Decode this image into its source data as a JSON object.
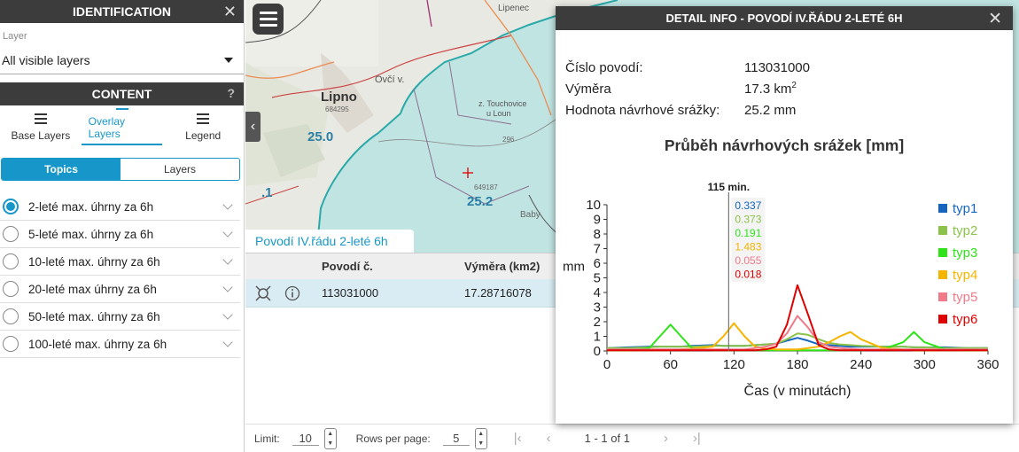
{
  "left": {
    "identification_title": "IDENTIFICATION",
    "layer_label": "Layer",
    "layer_value": "All visible layers",
    "content_title": "CONTENT",
    "help": "?",
    "tabs": [
      {
        "label": "Base Layers",
        "active": false
      },
      {
        "label": "Overlay Layers",
        "active": true
      },
      {
        "label": "Legend",
        "active": false
      }
    ],
    "segment": {
      "topics": "Topics",
      "layers": "Layers"
    },
    "topics": [
      {
        "label": "2-leté max. úhrny za 6h",
        "selected": true
      },
      {
        "label": "5-leté max. úhrny za 6h",
        "selected": false
      },
      {
        "label": "10-leté max. úhrny za 6h",
        "selected": false
      },
      {
        "label": "20-leté max úhrny za 6h",
        "selected": false
      },
      {
        "label": "50-leté max. úhrny za 6h",
        "selected": false
      },
      {
        "label": "100-leté max. úhrny za 6h",
        "selected": false
      }
    ]
  },
  "map": {
    "labels": [
      "Lipno",
      "25.0",
      "25.2",
      ".1",
      "Ovčí v.",
      "z. Touchovice",
      "u Loun",
      "Lipenec",
      "684295",
      "296",
      "Baby",
      "649187"
    ]
  },
  "table": {
    "tab_label": "Povodí IV.řádu 2-leté 6h",
    "headers": {
      "povodi": "Povodí č.",
      "vymera": "Výměra (km2)"
    },
    "rows": [
      {
        "povodi": "113031000",
        "vymera": "17.28716078"
      }
    ],
    "pager": {
      "limit_label": "Limit:",
      "limit": "10",
      "rows_label": "Rows per page:",
      "rows": "5",
      "range": "1 - 1 of 1"
    }
  },
  "dialog": {
    "title": "DETAIL INFO - POVODÍ IV.ŘÁDU 2-LETÉ 6H",
    "fields": [
      {
        "k": "Číslo povodí:",
        "v": "113031000"
      },
      {
        "k": "Výměra",
        "v": "17.3 km"
      },
      {
        "k": "Hodnota návrhové srážky:",
        "v": "25.2 mm"
      }
    ],
    "area_unit_sup": "2",
    "chart_title": "Průběh návrhových srážek [mm]"
  },
  "chart_data": {
    "type": "line",
    "title": "Průběh návrhových srážek [mm]",
    "xlabel": "Čas (v minutách)",
    "ylabel": "mm",
    "xlim": [
      0,
      360
    ],
    "ylim": [
      0,
      10
    ],
    "xticks": [
      0,
      60,
      120,
      180,
      240,
      300,
      360
    ],
    "yticks": [
      0,
      1,
      2,
      3,
      4,
      5,
      6,
      7,
      8,
      9,
      10
    ],
    "cursor": {
      "label": "115 min.",
      "x": 115,
      "values": [
        "0.337",
        "0.373",
        "0.191",
        "1.483",
        "0.055",
        "0.018"
      ]
    },
    "x": [
      0,
      20,
      40,
      50,
      60,
      70,
      80,
      100,
      110,
      120,
      130,
      140,
      150,
      160,
      170,
      180,
      190,
      200,
      210,
      220,
      230,
      240,
      260,
      280,
      290,
      300,
      320,
      340,
      360
    ],
    "series": [
      {
        "name": "typ1",
        "color": "#1565c0",
        "values": [
          0.2,
          0.25,
          0.3,
          0.3,
          0.3,
          0.3,
          0.35,
          0.4,
          0.35,
          0.35,
          0.35,
          0.4,
          0.45,
          0.5,
          0.7,
          0.9,
          0.7,
          0.45,
          0.4,
          0.35,
          0.3,
          0.3,
          0.3,
          0.3,
          0.25,
          0.25,
          0.25,
          0.2,
          0.2
        ]
      },
      {
        "name": "typ2",
        "color": "#8bc34a",
        "values": [
          0.2,
          0.2,
          0.25,
          0.3,
          0.3,
          0.3,
          0.3,
          0.35,
          0.35,
          0.35,
          0.35,
          0.4,
          0.45,
          0.5,
          0.8,
          1.2,
          1.1,
          0.8,
          0.55,
          0.45,
          0.4,
          0.35,
          0.3,
          0.3,
          0.25,
          0.25,
          0.2,
          0.2,
          0.2
        ]
      },
      {
        "name": "typ3",
        "color": "#2fe31a",
        "values": [
          0.05,
          0.05,
          0.2,
          1.0,
          1.8,
          1.0,
          0.2,
          0.05,
          0.05,
          0.05,
          0.05,
          0.05,
          0.05,
          0.05,
          0.05,
          0.05,
          0.05,
          0.05,
          0.05,
          0.05,
          0.05,
          0.05,
          0.1,
          0.6,
          1.3,
          0.6,
          0.1,
          0.05,
          0.05
        ]
      },
      {
        "name": "typ4",
        "color": "#f5b400",
        "values": [
          0.05,
          0.05,
          0.05,
          0.05,
          0.05,
          0.1,
          0.15,
          0.3,
          1.0,
          1.9,
          1.0,
          0.3,
          0.15,
          0.1,
          0.1,
          0.1,
          0.2,
          0.3,
          0.6,
          1.0,
          1.3,
          0.8,
          0.2,
          0.1,
          0.05,
          0.05,
          0.05,
          0.05,
          0.05
        ]
      },
      {
        "name": "typ5",
        "color": "#f07a8a",
        "values": [
          0.1,
          0.1,
          0.1,
          0.1,
          0.1,
          0.1,
          0.1,
          0.1,
          0.1,
          0.1,
          0.1,
          0.2,
          0.3,
          0.5,
          1.2,
          2.4,
          1.6,
          0.6,
          0.3,
          0.2,
          0.15,
          0.1,
          0.1,
          0.1,
          0.1,
          0.1,
          0.1,
          0.1,
          0.1
        ]
      },
      {
        "name": "typ6",
        "color": "#e00000",
        "values": [
          0.05,
          0.05,
          0.05,
          0.05,
          0.05,
          0.05,
          0.05,
          0.05,
          0.05,
          0.05,
          0.05,
          0.05,
          0.1,
          0.3,
          1.8,
          4.5,
          2.5,
          0.4,
          0.1,
          0.05,
          0.05,
          0.05,
          0.05,
          0.05,
          0.05,
          0.05,
          0.05,
          0.05,
          0.05
        ]
      }
    ]
  }
}
